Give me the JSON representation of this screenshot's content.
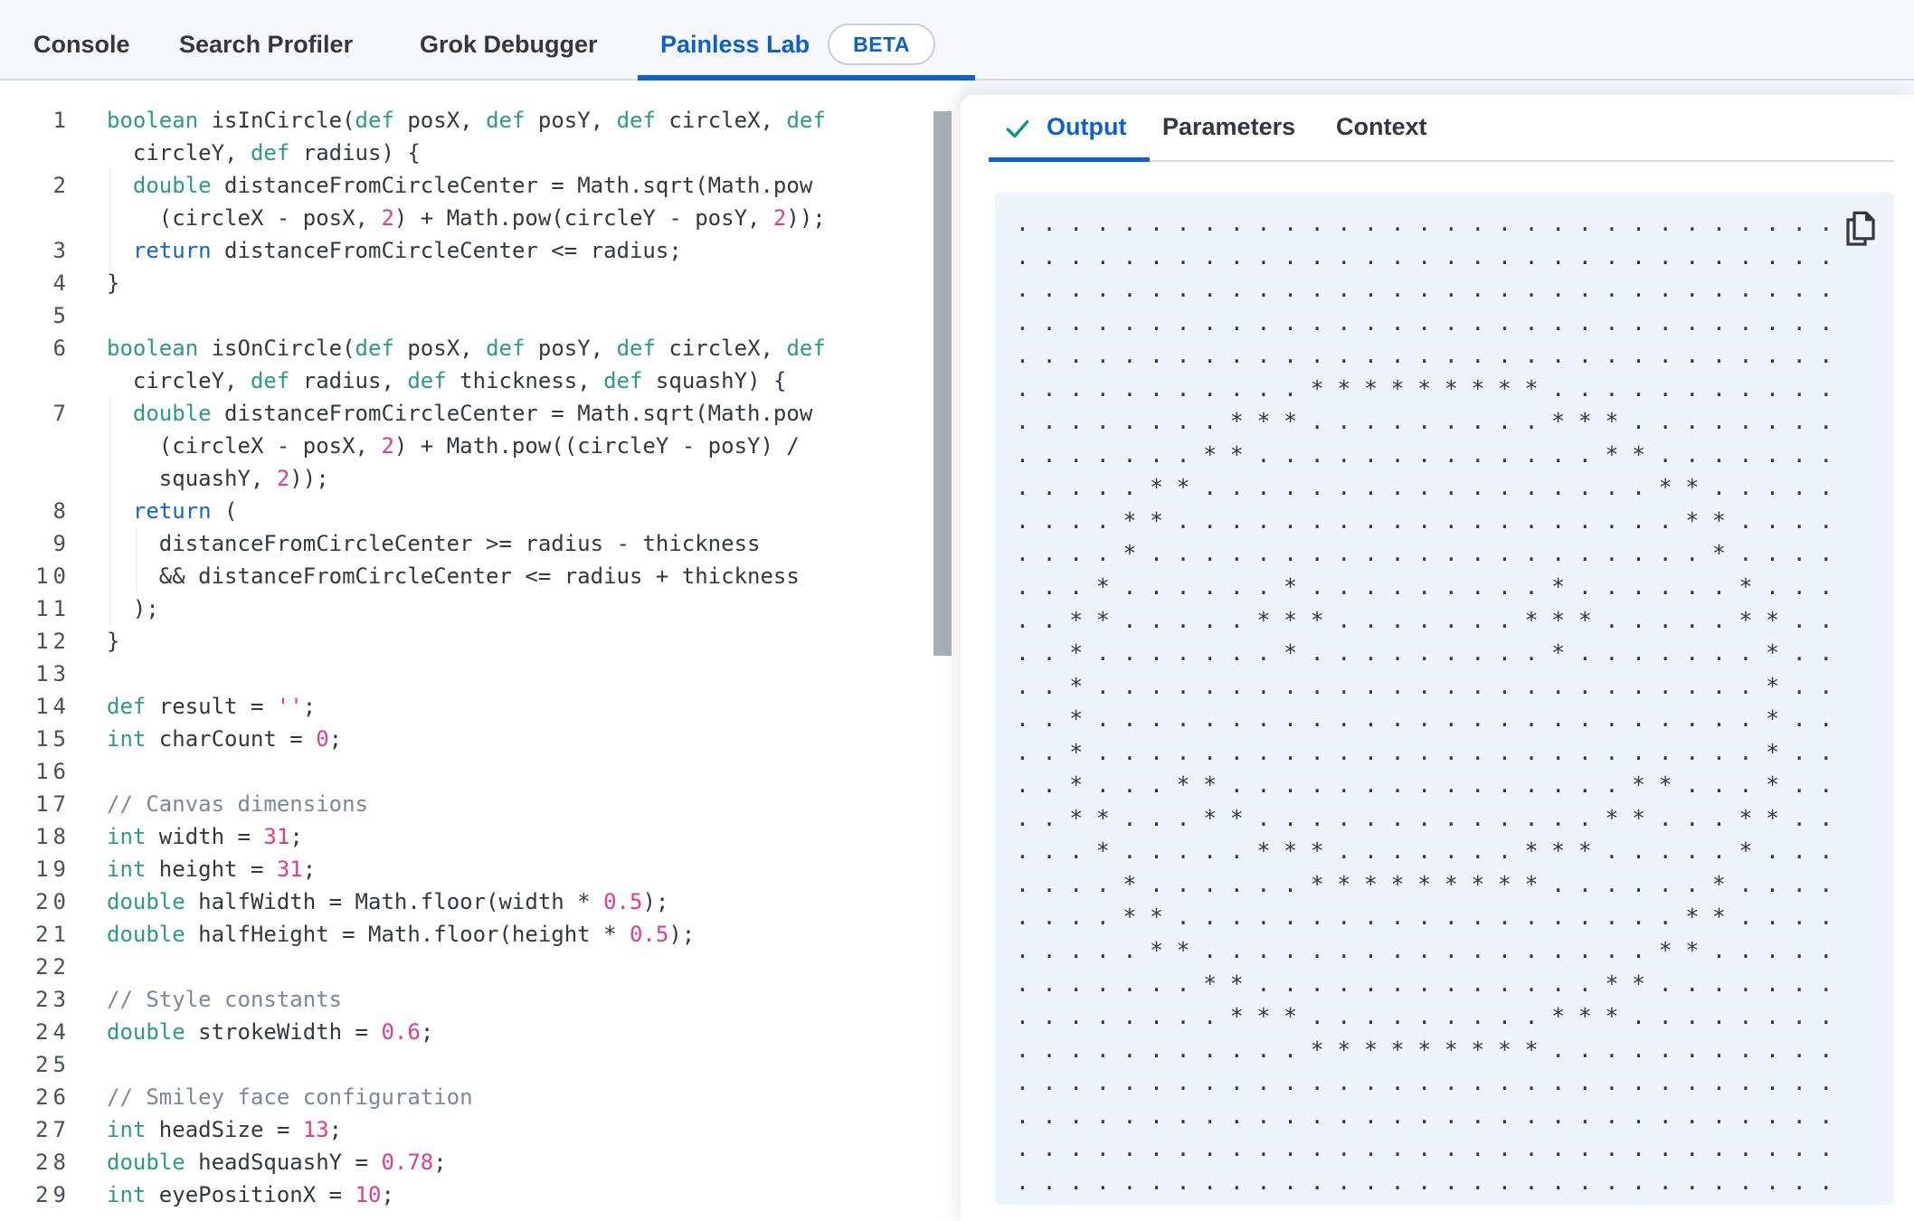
{
  "nav": {
    "tabs": [
      {
        "label": "Console"
      },
      {
        "label": "Search Profiler"
      },
      {
        "label": "Grok Debugger"
      },
      {
        "label": "Painless Lab",
        "beta": "BETA",
        "active": true
      }
    ]
  },
  "editor": {
    "language": "painless",
    "rows": [
      {
        "num": "1",
        "guides": 0,
        "seg": [
          [
            "k",
            "boolean"
          ],
          [
            "t",
            " isInCircle("
          ],
          [
            "k",
            "def"
          ],
          [
            "t",
            " posX, "
          ],
          [
            "k",
            "def"
          ],
          [
            "t",
            " posY, "
          ],
          [
            "k",
            "def"
          ],
          [
            "t",
            " circleX, "
          ],
          [
            "k",
            "def"
          ]
        ]
      },
      {
        "num": "",
        "guides": 0,
        "seg": [
          [
            "t",
            "  circleY, "
          ],
          [
            "k",
            "def"
          ],
          [
            "t",
            " radius) {"
          ]
        ]
      },
      {
        "num": "2",
        "guides": 1,
        "seg": [
          [
            "t",
            "  "
          ],
          [
            "k",
            "double"
          ],
          [
            "t",
            " distanceFromCircleCenter = Math.sqrt(Math.pow"
          ]
        ]
      },
      {
        "num": "",
        "guides": 1,
        "seg": [
          [
            "t",
            "    (circleX - posX, "
          ],
          [
            "n",
            "2"
          ],
          [
            "t",
            ") + Math.pow(circleY - posY, "
          ],
          [
            "n",
            "2"
          ],
          [
            "t",
            "));"
          ]
        ]
      },
      {
        "num": "3",
        "guides": 1,
        "seg": [
          [
            "t",
            "  "
          ],
          [
            "f",
            "return"
          ],
          [
            "t",
            " distanceFromCircleCenter <= radius;"
          ]
        ]
      },
      {
        "num": "4",
        "guides": 0,
        "seg": [
          [
            "t",
            "}"
          ]
        ]
      },
      {
        "num": "5",
        "guides": 0,
        "seg": []
      },
      {
        "num": "6",
        "guides": 0,
        "seg": [
          [
            "k",
            "boolean"
          ],
          [
            "t",
            " isOnCircle("
          ],
          [
            "k",
            "def"
          ],
          [
            "t",
            " posX, "
          ],
          [
            "k",
            "def"
          ],
          [
            "t",
            " posY, "
          ],
          [
            "k",
            "def"
          ],
          [
            "t",
            " circleX, "
          ],
          [
            "k",
            "def"
          ]
        ]
      },
      {
        "num": "",
        "guides": 0,
        "seg": [
          [
            "t",
            "  circleY, "
          ],
          [
            "k",
            "def"
          ],
          [
            "t",
            " radius, "
          ],
          [
            "k",
            "def"
          ],
          [
            "t",
            " thickness, "
          ],
          [
            "k",
            "def"
          ],
          [
            "t",
            " squashY) {"
          ]
        ]
      },
      {
        "num": "7",
        "guides": 1,
        "seg": [
          [
            "t",
            "  "
          ],
          [
            "k",
            "double"
          ],
          [
            "t",
            " distanceFromCircleCenter = Math.sqrt(Math.pow"
          ]
        ]
      },
      {
        "num": "",
        "guides": 1,
        "seg": [
          [
            "t",
            "    (circleX - posX, "
          ],
          [
            "n",
            "2"
          ],
          [
            "t",
            ") + Math.pow((circleY - posY) /"
          ]
        ]
      },
      {
        "num": "",
        "guides": 1,
        "seg": [
          [
            "t",
            "    squashY, "
          ],
          [
            "n",
            "2"
          ],
          [
            "t",
            "));"
          ]
        ]
      },
      {
        "num": "8",
        "guides": 1,
        "seg": [
          [
            "t",
            "  "
          ],
          [
            "f",
            "return"
          ],
          [
            "t",
            " ("
          ]
        ]
      },
      {
        "num": "9",
        "guides": 2,
        "seg": [
          [
            "t",
            "    distanceFromCircleCenter >= radius - thickness"
          ]
        ]
      },
      {
        "num": "10",
        "guides": 2,
        "seg": [
          [
            "t",
            "    && distanceFromCircleCenter <= radius + thickness"
          ]
        ]
      },
      {
        "num": "11",
        "guides": 1,
        "seg": [
          [
            "t",
            "  );"
          ]
        ]
      },
      {
        "num": "12",
        "guides": 0,
        "seg": [
          [
            "t",
            "}"
          ]
        ]
      },
      {
        "num": "13",
        "guides": 0,
        "seg": []
      },
      {
        "num": "14",
        "guides": 0,
        "seg": [
          [
            "k",
            "def"
          ],
          [
            "t",
            " result = "
          ],
          [
            "n",
            "''"
          ],
          [
            "t",
            ";"
          ]
        ]
      },
      {
        "num": "15",
        "guides": 0,
        "seg": [
          [
            "k",
            "int"
          ],
          [
            "t",
            " charCount = "
          ],
          [
            "n",
            "0"
          ],
          [
            "t",
            ";"
          ]
        ]
      },
      {
        "num": "16",
        "guides": 0,
        "seg": []
      },
      {
        "num": "17",
        "guides": 0,
        "seg": [
          [
            "c",
            "// Canvas dimensions"
          ]
        ]
      },
      {
        "num": "18",
        "guides": 0,
        "seg": [
          [
            "k",
            "int"
          ],
          [
            "t",
            " width = "
          ],
          [
            "n",
            "31"
          ],
          [
            "t",
            ";"
          ]
        ]
      },
      {
        "num": "19",
        "guides": 0,
        "seg": [
          [
            "k",
            "int"
          ],
          [
            "t",
            " height = "
          ],
          [
            "n",
            "31"
          ],
          [
            "t",
            ";"
          ]
        ]
      },
      {
        "num": "20",
        "guides": 0,
        "seg": [
          [
            "k",
            "double"
          ],
          [
            "t",
            " halfWidth = Math.floor(width * "
          ],
          [
            "n",
            "0.5"
          ],
          [
            "t",
            ");"
          ]
        ]
      },
      {
        "num": "21",
        "guides": 0,
        "seg": [
          [
            "k",
            "double"
          ],
          [
            "t",
            " halfHeight = Math.floor(height * "
          ],
          [
            "n",
            "0.5"
          ],
          [
            "t",
            ");"
          ]
        ]
      },
      {
        "num": "22",
        "guides": 0,
        "seg": []
      },
      {
        "num": "23",
        "guides": 0,
        "seg": [
          [
            "c",
            "// Style constants"
          ]
        ]
      },
      {
        "num": "24",
        "guides": 0,
        "seg": [
          [
            "k",
            "double"
          ],
          [
            "t",
            " strokeWidth = "
          ],
          [
            "n",
            "0.6"
          ],
          [
            "t",
            ";"
          ]
        ]
      },
      {
        "num": "25",
        "guides": 0,
        "seg": []
      },
      {
        "num": "26",
        "guides": 0,
        "seg": [
          [
            "c",
            "// Smiley face configuration"
          ]
        ]
      },
      {
        "num": "27",
        "guides": 0,
        "seg": [
          [
            "k",
            "int"
          ],
          [
            "t",
            " headSize = "
          ],
          [
            "n",
            "13"
          ],
          [
            "t",
            ";"
          ]
        ]
      },
      {
        "num": "28",
        "guides": 0,
        "seg": [
          [
            "k",
            "double"
          ],
          [
            "t",
            " headSquashY = "
          ],
          [
            "n",
            "0.78"
          ],
          [
            "t",
            ";"
          ]
        ]
      },
      {
        "num": "29",
        "guides": 0,
        "seg": [
          [
            "k",
            "int"
          ],
          [
            "t",
            " eyePositionX = "
          ],
          [
            "n",
            "10"
          ],
          [
            "t",
            ";"
          ]
        ]
      }
    ]
  },
  "panel": {
    "tabs": [
      {
        "label": "Output",
        "active": true,
        "has_check": true
      },
      {
        "label": "Parameters",
        "active": false
      },
      {
        "label": "Context",
        "active": false
      }
    ],
    "output_rows": [
      "...............................",
      "...............................",
      "...............................",
      "...............................",
      "...............................",
      "...........*********...........",
      "........***.........***........",
      ".......**.............**.......",
      ".....**.................**.....",
      "....**...................**....",
      "....*.....................*....",
      "...*......*.........*......*...",
      "..**.....***.......***.....**..",
      "..*.......*.........*.......*..",
      "..*.........................*..",
      "..*.........................*..",
      "..*.........................*..",
      "..*...**...............**...*..",
      "..**...**.............**...**..",
      "...*.....***.......***.....*...",
      "....*......*********......*....",
      "....**...................**....",
      ".....**.................**.....",
      ".......**.............**.......",
      "........***.........***........",
      "...........*********...........",
      "...............................",
      "...............................",
      "...............................",
      "..............................."
    ]
  },
  "colors": {
    "primary_blue": "#0d60cf",
    "check_green": "#00997f",
    "keyword_green": "#2b9c7c",
    "flow_blue": "#1265d2",
    "number_pink": "#e63c85",
    "comment_gray": "#7d8799",
    "text_dark": "#343741",
    "nav_bg": "#f7f8fc",
    "tab_border": "#d3dae6",
    "output_bg": "#eff3fa",
    "scrollbar": "#a9aeb4"
  }
}
